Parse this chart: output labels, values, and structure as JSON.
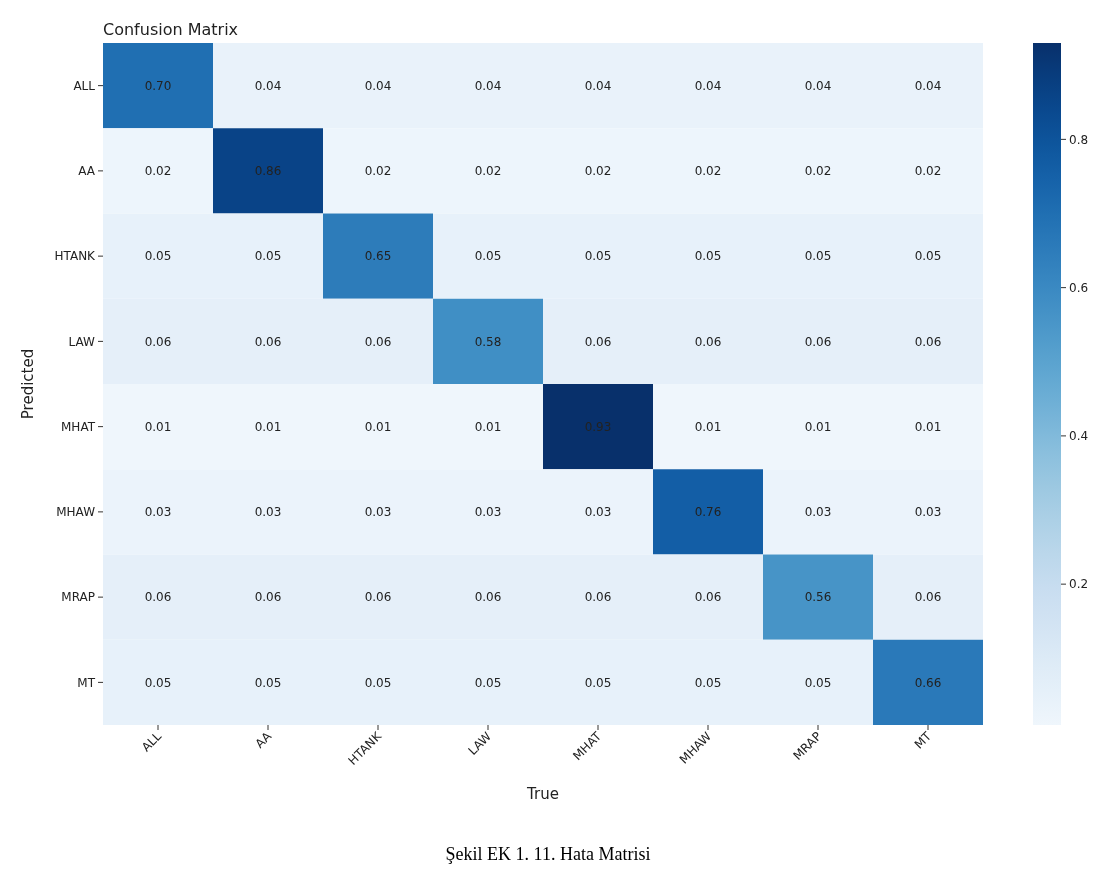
{
  "chart_data": {
    "type": "heatmap",
    "title": "Confusion Matrix",
    "xlabel": "True",
    "ylabel": "Predicted",
    "categories": [
      "ALL",
      "AA",
      "HTANK",
      "LAW",
      "MHAT",
      "MHAW",
      "MRAP",
      "MT"
    ],
    "y_categories": [
      "ALL",
      "AA",
      "HTANK",
      "LAW",
      "MHAT",
      "MHAW",
      "MRAP",
      "MT"
    ],
    "cells": [
      [
        0.7,
        0.04,
        0.04,
        0.04,
        0.04,
        0.04,
        0.04,
        0.04
      ],
      [
        0.02,
        0.86,
        0.02,
        0.02,
        0.02,
        0.02,
        0.02,
        0.02
      ],
      [
        0.05,
        0.05,
        0.65,
        0.05,
        0.05,
        0.05,
        0.05,
        0.05
      ],
      [
        0.06,
        0.06,
        0.06,
        0.58,
        0.06,
        0.06,
        0.06,
        0.06
      ],
      [
        0.01,
        0.01,
        0.01,
        0.01,
        0.93,
        0.01,
        0.01,
        0.01
      ],
      [
        0.03,
        0.03,
        0.03,
        0.03,
        0.03,
        0.76,
        0.03,
        0.03
      ],
      [
        0.06,
        0.06,
        0.06,
        0.06,
        0.06,
        0.06,
        0.56,
        0.06
      ],
      [
        0.05,
        0.05,
        0.05,
        0.05,
        0.05,
        0.05,
        0.05,
        0.66
      ]
    ],
    "cell_labels": [
      [
        "0.70",
        "0.04",
        "0.04",
        "0.04",
        "0.04",
        "0.04",
        "0.04",
        "0.04"
      ],
      [
        "0.02",
        "0.86",
        "0.02",
        "0.02",
        "0.02",
        "0.02",
        "0.02",
        "0.02"
      ],
      [
        "0.05",
        "0.05",
        "0.65",
        "0.05",
        "0.05",
        "0.05",
        "0.05",
        "0.05"
      ],
      [
        "0.06",
        "0.06",
        "0.06",
        "0.58",
        "0.06",
        "0.06",
        "0.06",
        "0.06"
      ],
      [
        "0.01",
        "0.01",
        "0.01",
        "0.01",
        "0.93",
        "0.01",
        "0.01",
        "0.01"
      ],
      [
        "0.03",
        "0.03",
        "0.03",
        "0.03",
        "0.03",
        "0.76",
        "0.03",
        "0.03"
      ],
      [
        "0.06",
        "0.06",
        "0.06",
        "0.06",
        "0.06",
        "0.06",
        "0.56",
        "0.06"
      ],
      [
        "0.05",
        "0.05",
        "0.05",
        "0.05",
        "0.05",
        "0.05",
        "0.05",
        "0.66"
      ]
    ],
    "clim": [
      0.01,
      0.93
    ],
    "cticks": [
      0.2,
      0.4,
      0.6,
      0.8
    ],
    "annotations": [
      "Şekil EK 1. 11. Hata Matrisi"
    ]
  }
}
